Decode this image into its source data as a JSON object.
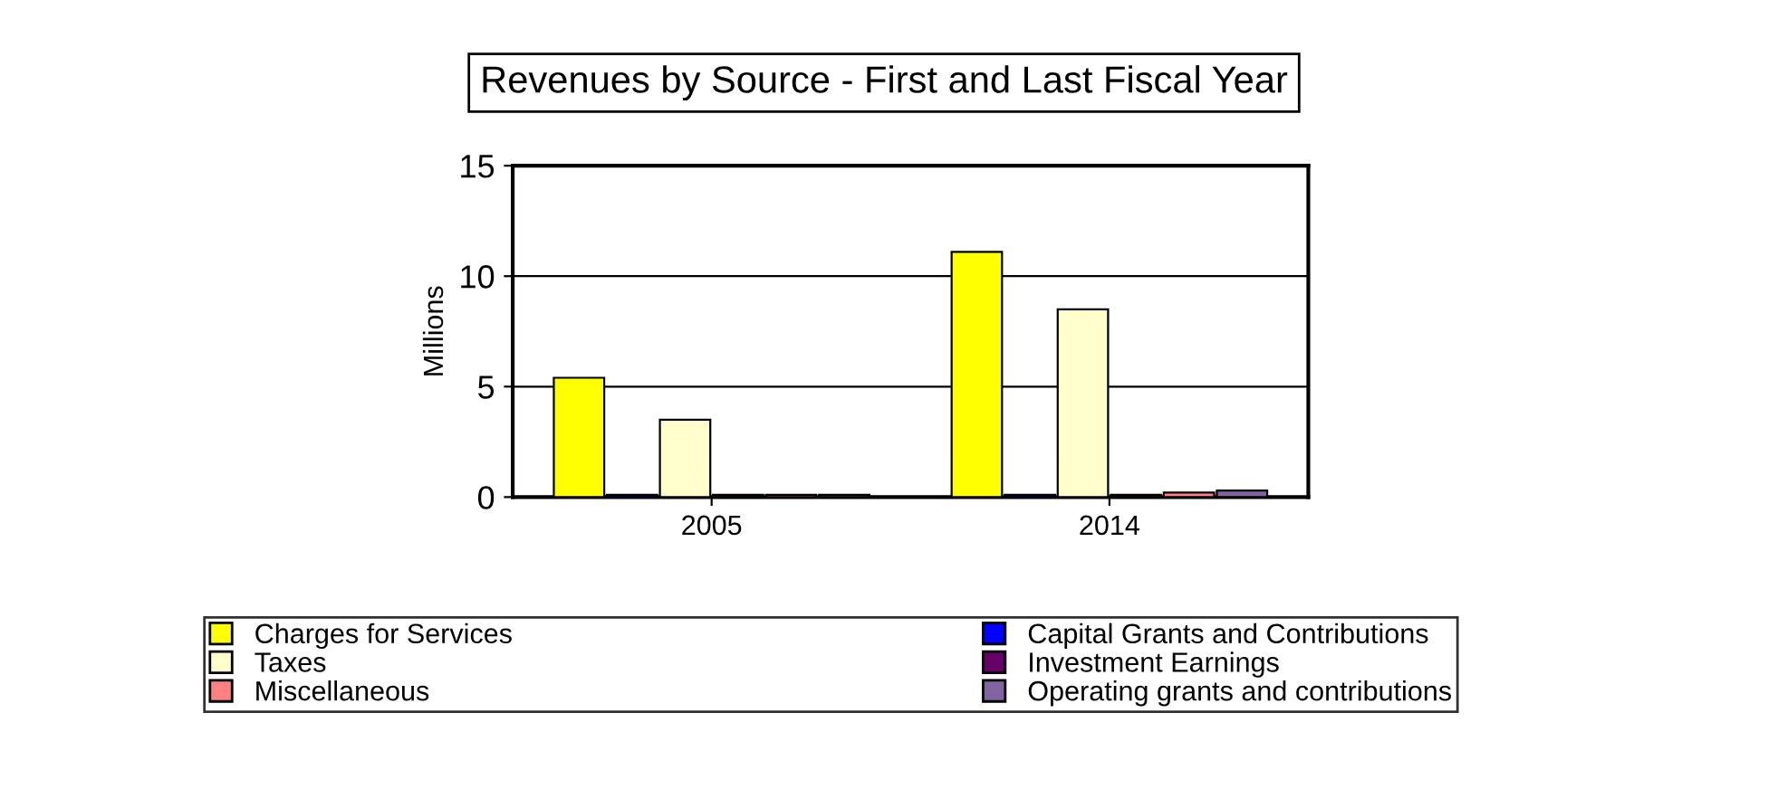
{
  "chart_data": {
    "type": "bar",
    "title": "Revenues by Source - First and Last Fiscal Year",
    "ylabel": "Millions",
    "categories": [
      "2005",
      "2014"
    ],
    "series": [
      {
        "name": "Charges for Services",
        "color": "#ffff00",
        "values": [
          5.4,
          11.1
        ]
      },
      {
        "name": "Capital Grants and Contributions",
        "color": "#0000ff",
        "values": [
          0.1,
          0.1
        ]
      },
      {
        "name": "Taxes",
        "color": "#ffffcc",
        "values": [
          3.5,
          8.5
        ]
      },
      {
        "name": "Investment Earnings",
        "color": "#660066",
        "values": [
          0.1,
          0.1
        ]
      },
      {
        "name": "Miscellaneous",
        "color": "#ff8080",
        "values": [
          0.1,
          0.2
        ]
      },
      {
        "name": "Operating grants and contributions",
        "color": "#8064a2",
        "values": [
          0.1,
          0.3
        ]
      }
    ],
    "ylim": [
      0,
      15
    ],
    "yticks": [
      0,
      5,
      10,
      15
    ],
    "grid": "y",
    "legend": "bottom"
  }
}
